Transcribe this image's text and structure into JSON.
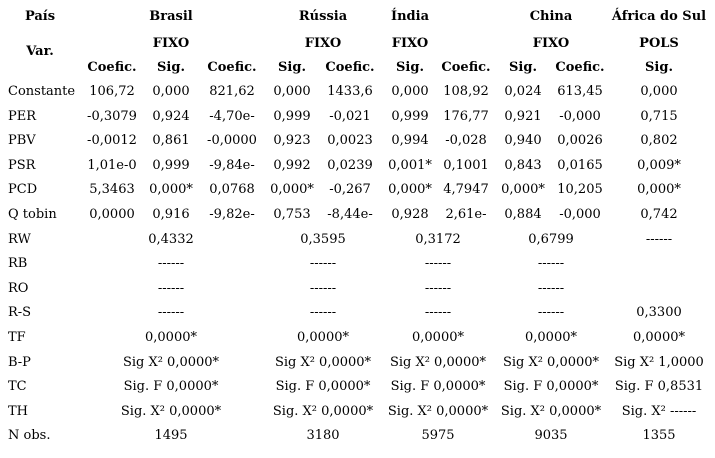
{
  "header": {
    "pais_label": "País",
    "var_label": "Var.",
    "countries": [
      {
        "name": "Brasil",
        "model": "FIXO"
      },
      {
        "name": "Rússia",
        "model": "FIXO"
      },
      {
        "name": "Índia",
        "model": "FIXO"
      },
      {
        "name": "China",
        "model": "FIXO"
      },
      {
        "name": "África do Sul",
        "model": "POLS"
      }
    ],
    "subheaders": [
      "Coefic.",
      "Sig.",
      "Coefic.",
      "Sig.",
      "Coefic.",
      "Sig.",
      "Coefic.",
      "Sig.",
      "Coefic.",
      "Sig."
    ]
  },
  "rows": [
    {
      "label": "Constante",
      "cells": [
        "106,72",
        "0,000",
        "821,62",
        "0,000",
        "1433,6",
        "0,000",
        "108,92",
        "0,024",
        "613,45",
        "0,000"
      ]
    },
    {
      "label": "PER",
      "cells": [
        "-0,3079",
        "0,924",
        "-4,70e-",
        "0,999",
        "-0,021",
        "0,999",
        "176,77",
        "0,921",
        "-0,000",
        "0,715"
      ]
    },
    {
      "label": "PBV",
      "cells": [
        "-0,0012",
        "0,861",
        "-0,0000",
        "0,923",
        "0,0023",
        "0,994",
        "-0,028",
        "0,940",
        "0,0026",
        "0,802"
      ]
    },
    {
      "label": "PSR",
      "cells": [
        "1,01e-0",
        "0,999",
        "-9,84e-",
        "0,992",
        "0,0239",
        "0,001*",
        "0,1001",
        "0,843",
        "0,0165",
        "0,009*"
      ]
    },
    {
      "label": "PCD",
      "cells": [
        "5,3463",
        "0,000*",
        "0,0768",
        "0,000*",
        "-0,267",
        "0,000*",
        "4,7947",
        "0,000*",
        "10,205",
        "0,000*"
      ]
    },
    {
      "label": "Q tobin",
      "cells": [
        "0,0000",
        "0,916",
        "-9,82e-",
        "0,753",
        "-8,44e-",
        "0,928",
        "2,61e-",
        "0,884",
        "-0,000",
        "0,742"
      ]
    }
  ],
  "summary_rows": [
    {
      "label": "RW",
      "cells": [
        "0,4332",
        "0,3595",
        "0,3172",
        "0,6799",
        "------"
      ]
    },
    {
      "label": "RB",
      "cells": [
        "------",
        "------",
        "------",
        "------",
        ""
      ]
    },
    {
      "label": "RO",
      "cells": [
        "------",
        "------",
        "------",
        "------",
        ""
      ]
    },
    {
      "label": "R-S",
      "cells": [
        "------",
        "------",
        "------",
        "------",
        "0,3300"
      ]
    },
    {
      "label": "TF",
      "cells": [
        "0,0000*",
        "0,0000*",
        "0,0000*",
        "0,0000*",
        "0,0000*"
      ]
    },
    {
      "label": "B-P",
      "cells": [
        "Sig X² 0,0000*",
        "Sig X² 0,0000*",
        "Sig X² 0,0000*",
        "Sig X² 0,0000*",
        "Sig X² 1,0000"
      ]
    },
    {
      "label": "TC",
      "cells": [
        "Sig. F 0,0000*",
        "Sig. F 0,0000*",
        "Sig. F 0,0000*",
        "Sig. F 0,0000*",
        "Sig. F 0,8531"
      ]
    },
    {
      "label": "TH",
      "cells": [
        "Sig. X² 0,0000*",
        "Sig. X² 0,0000*",
        "Sig. X² 0,0000*",
        "Sig. X² 0,0000*",
        "Sig. X² ------"
      ]
    },
    {
      "label": "N obs.",
      "cells": [
        "1495",
        "3180",
        "5975",
        "9035",
        "1355"
      ]
    }
  ]
}
